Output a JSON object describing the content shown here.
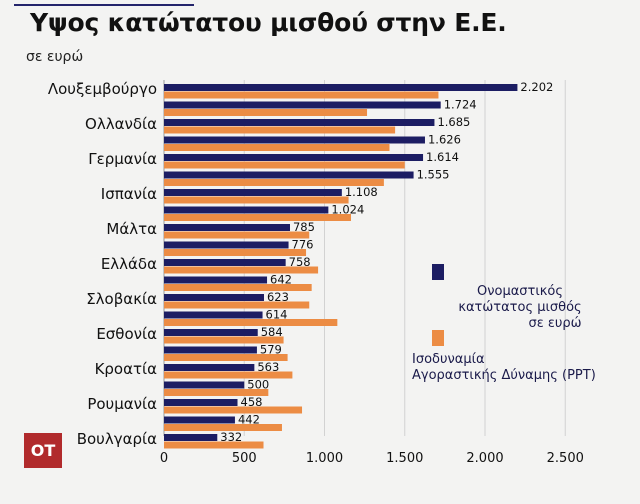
{
  "header": {
    "title": "Υψος κατώτατου μισθού στην Ε.Ε.",
    "subtitle": "σε ευρώ"
  },
  "logo": {
    "text": "OT"
  },
  "legend": {
    "nominal": "Ονομαστικός\nκατώτατος μισθός\nσε ευρώ",
    "ppp": "Ισοδυναμία\nΑγοραστικής Δύναμης (PPT)"
  },
  "colors": {
    "nominal": "#1c1d63",
    "ppp": "#ec8c44",
    "grid": "#d2d2d2",
    "text": "#111111"
  },
  "chart_data": {
    "type": "bar",
    "orientation": "horizontal",
    "rows": [
      {
        "label": "Λουξεμβούργο",
        "nominal": 2202,
        "nominal_label": "2.202",
        "ppp": 1710
      },
      {
        "label": "",
        "nominal": 1724,
        "nominal_label": "1.724",
        "ppp": 1265
      },
      {
        "label": "Ολλανδία",
        "nominal": 1685,
        "nominal_label": "1.685",
        "ppp": 1440
      },
      {
        "label": "",
        "nominal": 1626,
        "nominal_label": "1.626",
        "ppp": 1405
      },
      {
        "label": "Γερμανία",
        "nominal": 1614,
        "nominal_label": "1.614",
        "ppp": 1500
      },
      {
        "label": "",
        "nominal": 1555,
        "nominal_label": "1.555",
        "ppp": 1370
      },
      {
        "label": "Ισπανία",
        "nominal": 1108,
        "nominal_label": "1.108",
        "ppp": 1150
      },
      {
        "label": "",
        "nominal": 1024,
        "nominal_label": "1.024",
        "ppp": 1165
      },
      {
        "label": "Μάλτα",
        "nominal": 785,
        "nominal_label": "785",
        "ppp": 905
      },
      {
        "label": "",
        "nominal": 776,
        "nominal_label": "776",
        "ppp": 885
      },
      {
        "label": "Ελλάδα",
        "nominal": 758,
        "nominal_label": "758",
        "ppp": 960
      },
      {
        "label": "",
        "nominal": 642,
        "nominal_label": "642",
        "ppp": 920
      },
      {
        "label": "Σλοβακία",
        "nominal": 623,
        "nominal_label": "623",
        "ppp": 905
      },
      {
        "label": "",
        "nominal": 614,
        "nominal_label": "614",
        "ppp": 1080
      },
      {
        "label": "Εσθονία",
        "nominal": 584,
        "nominal_label": "584",
        "ppp": 745
      },
      {
        "label": "",
        "nominal": 579,
        "nominal_label": "579",
        "ppp": 770
      },
      {
        "label": "Κροατία",
        "nominal": 563,
        "nominal_label": "563",
        "ppp": 800
      },
      {
        "label": "",
        "nominal": 500,
        "nominal_label": "500",
        "ppp": 650
      },
      {
        "label": "Ρουμανία",
        "nominal": 458,
        "nominal_label": "458",
        "ppp": 860
      },
      {
        "label": "",
        "nominal": 442,
        "nominal_label": "442",
        "ppp": 735
      },
      {
        "label": "Βουλγαρία",
        "nominal": 332,
        "nominal_label": "332",
        "ppp": 620
      }
    ],
    "x_ticks": [
      {
        "value": 0,
        "label": "0"
      },
      {
        "value": 500,
        "label": "500"
      },
      {
        "value": 1000,
        "label": "1.000"
      },
      {
        "value": 1500,
        "label": "1.500"
      },
      {
        "value": 2000,
        "label": "2.000"
      },
      {
        "value": 2500,
        "label": "2.500"
      }
    ],
    "xlim": [
      0,
      2700
    ],
    "grid": "vertical"
  }
}
